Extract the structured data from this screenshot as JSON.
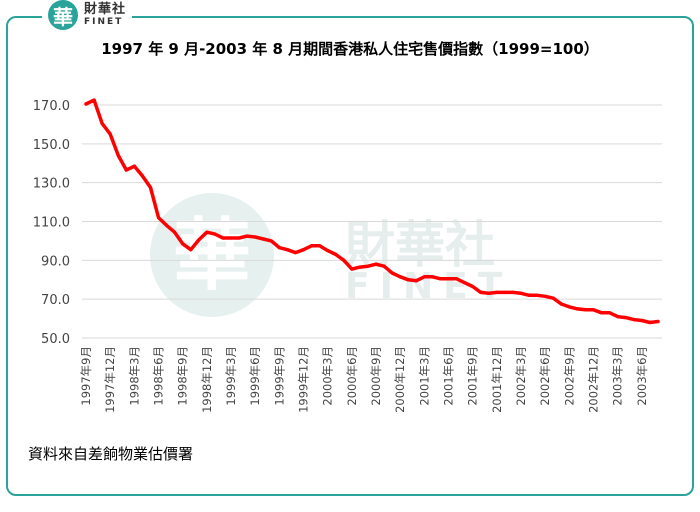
{
  "logo": {
    "badge_char": "華",
    "name_cn": "財華社",
    "name_en": "FINET"
  },
  "watermark": {
    "badge_char": "華",
    "name_cn": "財華社",
    "name_en": "FINET"
  },
  "colors": {
    "line": "#ff0000",
    "frame": "#2aa39a",
    "watermark": "#dbe9e7"
  },
  "chart_data": {
    "type": "line",
    "title": "1997 年 9 月-2003 年 8 月期間香港私人住宅售價指數（1999=100）",
    "source": "資料來自差餉物業估價署",
    "ylim": [
      50,
      170
    ],
    "yticks": [
      "170.0",
      "150.0",
      "130.0",
      "110.0",
      "90.0",
      "70.0",
      "50.0"
    ],
    "grid": true,
    "xtick_labels": [
      "1997年9月",
      "1997年12月",
      "1998年3月",
      "1998年6月",
      "1998年9月",
      "1998年12月",
      "1999年3月",
      "1999年6月",
      "1999年9月",
      "1999年12月",
      "2000年3月",
      "2000年6月",
      "2000年9月",
      "2000年12月",
      "2001年3月",
      "2001年6月",
      "2001年9月",
      "2001年12月",
      "2002年3月",
      "2002年6月",
      "2002年9月",
      "2002年12月",
      "2003年3月",
      "2003年6月"
    ],
    "series": [
      {
        "values": [
          170.5,
          172.5,
          160.5,
          155.0,
          144.0,
          136.5,
          138.5,
          133.5,
          127.5,
          112.0,
          108.0,
          104.5,
          98.5,
          95.5,
          100.5,
          104.5,
          103.5,
          101.5,
          101.5,
          101.5,
          102.5,
          102.0,
          101.0,
          100.0,
          96.5,
          95.5,
          94.0,
          95.5,
          97.5,
          97.5,
          95.0,
          93.0,
          90.0,
          85.5,
          86.5,
          87.0,
          88.0,
          87.0,
          83.5,
          81.5,
          80.0,
          79.5,
          81.5,
          81.5,
          80.5,
          80.5,
          80.5,
          78.5,
          76.5,
          73.5,
          73.0,
          73.5,
          73.5,
          73.5,
          73.0,
          72.0,
          72.0,
          71.5,
          70.5,
          67.5,
          66.0,
          65.0,
          64.5,
          64.5,
          63.0,
          63.0,
          61.0,
          60.5,
          59.5,
          59.0,
          58.0,
          58.5
        ]
      }
    ]
  }
}
